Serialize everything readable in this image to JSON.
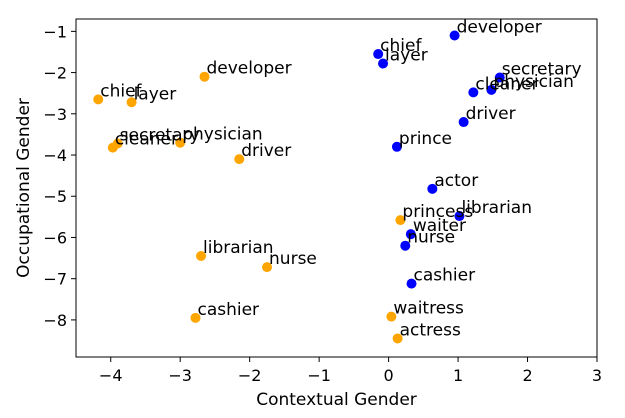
{
  "chart_data": {
    "type": "scatter",
    "title": "",
    "xlabel": "Contextual Gender",
    "ylabel": "Occupational Gender",
    "xlim": [
      -4.5,
      3
    ],
    "ylim": [
      -8.9,
      -0.7
    ],
    "xticks": [
      -4,
      -3,
      -2,
      -1,
      0,
      1,
      2,
      3
    ],
    "yticks": [
      -1,
      -2,
      -3,
      -4,
      -5,
      -6,
      -7,
      -8
    ],
    "xtick_labels": [
      "−4",
      "−3",
      "−2",
      "−1",
      "0",
      "1",
      "2",
      "3"
    ],
    "ytick_labels": [
      "−1",
      "−2",
      "−3",
      "−4",
      "−5",
      "−6",
      "−7",
      "−8"
    ],
    "grid": false,
    "series": [
      {
        "color": "#0000ff",
        "points": [
          {
            "label": "developer",
            "x": 0.95,
            "y": -1.1
          },
          {
            "label": "chief",
            "x": -0.15,
            "y": -1.55
          },
          {
            "label": "layer",
            "x": -0.08,
            "y": -1.78
          },
          {
            "label": "secretary",
            "x": 1.6,
            "y": -2.12
          },
          {
            "label": "physician",
            "x": 1.48,
            "y": -2.42
          },
          {
            "label": "cleaner",
            "x": 1.22,
            "y": -2.48
          },
          {
            "label": "driver",
            "x": 1.08,
            "y": -3.2
          },
          {
            "label": "prince",
            "x": 0.12,
            "y": -3.8
          },
          {
            "label": "actor",
            "x": 0.63,
            "y": -4.82
          },
          {
            "label": "librarian",
            "x": 1.02,
            "y": -5.48
          },
          {
            "label": "waiter",
            "x": 0.32,
            "y": -5.92
          },
          {
            "label": "nurse",
            "x": 0.24,
            "y": -6.2
          },
          {
            "label": "cashier",
            "x": 0.33,
            "y": -7.12
          }
        ]
      },
      {
        "color": "#ffa500",
        "points": [
          {
            "label": "chief",
            "x": -4.18,
            "y": -2.65
          },
          {
            "label": "layer",
            "x": -3.7,
            "y": -2.72
          },
          {
            "label": "developer",
            "x": -2.65,
            "y": -2.1
          },
          {
            "label": "secretary",
            "x": -3.9,
            "y": -3.72
          },
          {
            "label": "cleaner",
            "x": -3.97,
            "y": -3.82
          },
          {
            "label": "physician",
            "x": -3.0,
            "y": -3.7
          },
          {
            "label": "driver",
            "x": -2.15,
            "y": -4.1
          },
          {
            "label": "librarian",
            "x": -2.7,
            "y": -6.45
          },
          {
            "label": "nurse",
            "x": -1.75,
            "y": -6.72
          },
          {
            "label": "cashier",
            "x": -2.78,
            "y": -7.95
          },
          {
            "label": "princess",
            "x": 0.17,
            "y": -5.58
          },
          {
            "label": "waitress",
            "x": 0.04,
            "y": -7.92
          },
          {
            "label": "actress",
            "x": 0.13,
            "y": -8.45
          }
        ]
      }
    ]
  }
}
